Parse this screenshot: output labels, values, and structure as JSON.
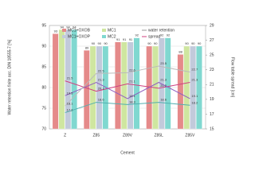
{
  "chart_data": {
    "type": "bar-line",
    "categories": [
      "Z",
      "Z85",
      "Z89V",
      "Z85L",
      "Z85V"
    ],
    "x_label": "Cement",
    "y_label": "Water retention finite acc. DIN 18555-7 [%]",
    "y2_label": "Flow table spread [cm]",
    "ylim": [
      70,
      95
    ],
    "yticks": [
      70,
      75,
      80,
      85,
      90,
      95
    ],
    "y2lim": [
      15,
      29
    ],
    "y2ticks": [
      15,
      17,
      19,
      21,
      23,
      25,
      27,
      29
    ],
    "legend_extra": [
      "water retention",
      "spread"
    ],
    "series": [
      {
        "name": "MC1+OXOB",
        "color": "#e58a8a",
        "line_color": "#d04080",
        "values": [
          93,
          89,
          91,
          90,
          88
        ],
        "spread": [
          21.5,
          20.1,
          21.1,
          20.5,
          21.3
        ]
      },
      {
        "name": "MC1",
        "color": "#cfe6a0",
        "line_color": "#9060c0",
        "values": [
          94,
          90,
          91,
          90,
          90
        ],
        "spread": [
          19.5,
          21.3,
          19.1,
          21.3,
          19.1
        ]
      },
      {
        "name": "MC1+OXOP",
        "color": "#c2cadb",
        "line_color": "#bbbbbb",
        "values": [
          94,
          90,
          91,
          92,
          90
        ],
        "spread": [
          18.1,
          22.5,
          22.6,
          23.5,
          22.7
        ]
      },
      {
        "name": "MC2",
        "color": "#80d8d0",
        "line_color": "#50b0b0",
        "values": [
          94,
          90,
          92,
          92,
          90
        ],
        "spread": [
          17.2,
          18.6,
          18.3,
          18.6,
          18.2
        ]
      }
    ]
  }
}
